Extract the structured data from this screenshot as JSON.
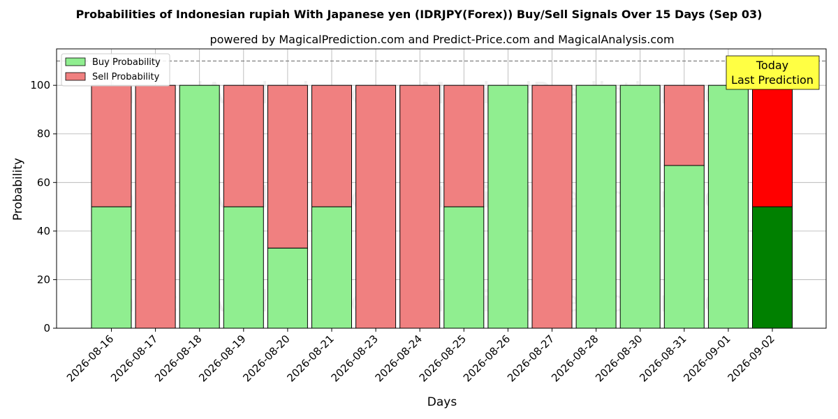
{
  "chart_data": {
    "type": "bar",
    "stacked": true,
    "title": "Probabilities of Indonesian rupiah With Japanese yen (IDRJPY(Forex)) Buy/Sell Signals Over 15 Days (Sep 03)",
    "subtitle": "powered by MagicalPrediction.com and Predict-Price.com and MagicalAnalysis.com",
    "xlabel": "Days",
    "ylabel": "Probability",
    "ylim": [
      0,
      115
    ],
    "yticks": [
      0,
      20,
      40,
      60,
      80,
      100
    ],
    "grid": true,
    "legend_position": "top-left",
    "categories": [
      "2026-08-16",
      "2026-08-17",
      "2026-08-18",
      "2026-08-19",
      "2026-08-20",
      "2026-08-21",
      "2026-08-23",
      "2026-08-24",
      "2026-08-25",
      "2026-08-26",
      "2026-08-27",
      "2026-08-28",
      "2026-08-30",
      "2026-08-31",
      "2026-09-01",
      "2026-09-02"
    ],
    "series": [
      {
        "name": "Buy Probability",
        "color": "#90ee90",
        "values": [
          50,
          0,
          100,
          50,
          33,
          50,
          0,
          0,
          50,
          100,
          0,
          100,
          100,
          67,
          100,
          50
        ]
      },
      {
        "name": "Sell Probability",
        "color": "#f08080",
        "values": [
          50,
          100,
          0,
          50,
          67,
          50,
          100,
          100,
          50,
          0,
          100,
          0,
          0,
          33,
          0,
          50
        ]
      }
    ],
    "highlight": {
      "index": 15,
      "buy_color": "#008000",
      "sell_color": "#ff0000"
    },
    "reference_line": {
      "y": 110,
      "style": "dashed",
      "color": "#808080"
    },
    "annotation": {
      "lines": [
        "Today",
        "Last Prediction"
      ],
      "background": "#ffff44"
    },
    "watermarks": [
      "MagicalAnalysis.com",
      "MagicalPrediction.com"
    ]
  }
}
